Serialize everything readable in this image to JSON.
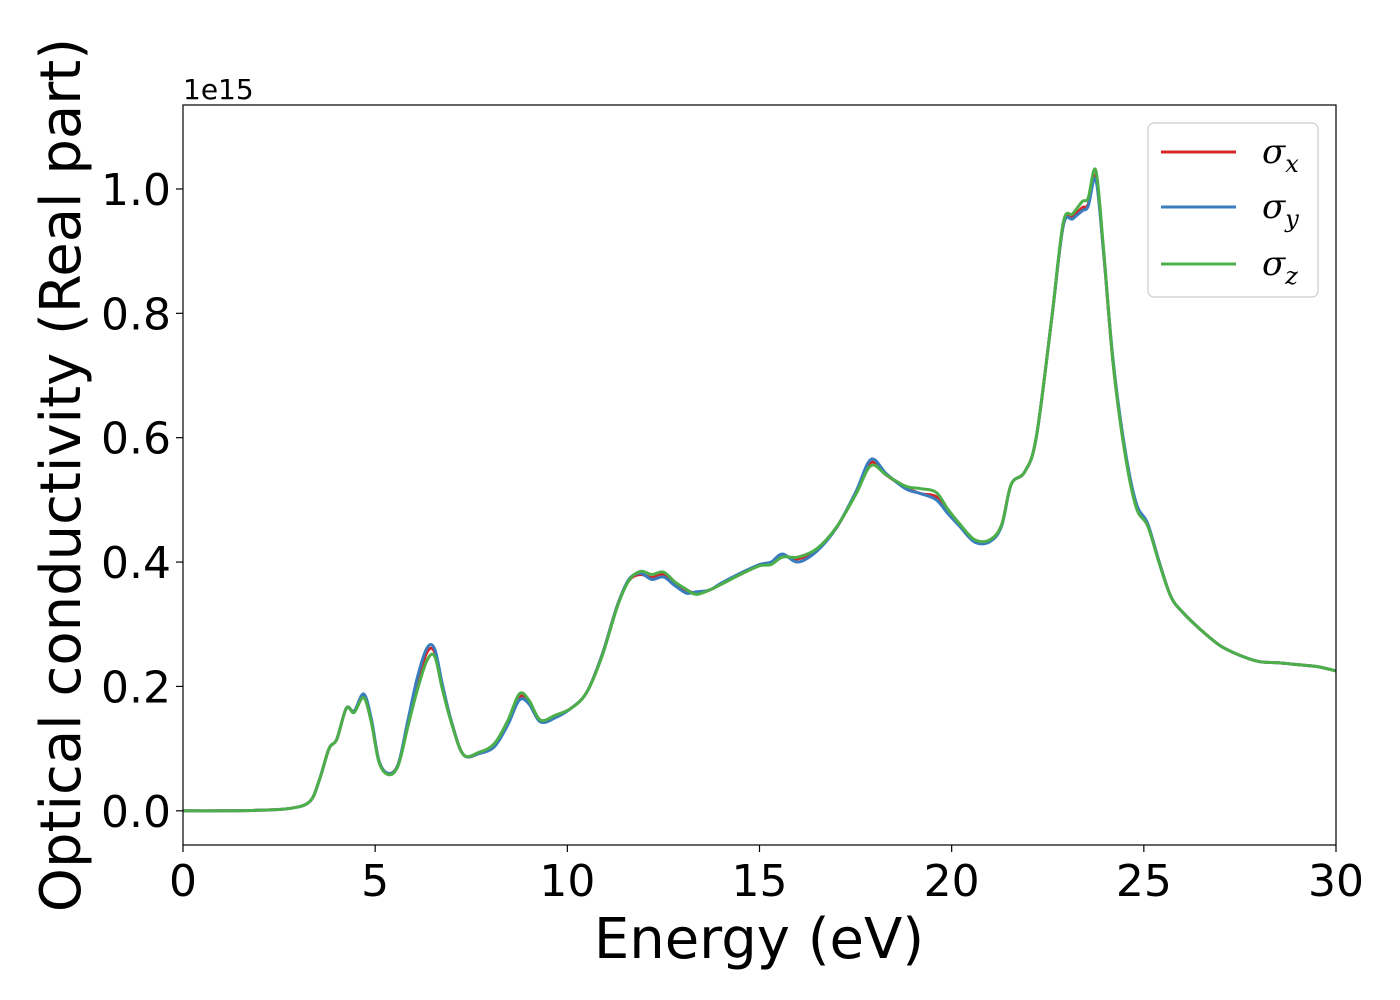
{
  "chart_data": {
    "type": "line",
    "title": "",
    "xlabel": "Energy (eV)",
    "ylabel": "Optical conductivity (Real part)",
    "y_offset_label": "1e15",
    "xlim": [
      0,
      30
    ],
    "ylim": [
      -0.055,
      1.135
    ],
    "xticks": [
      0,
      5,
      10,
      15,
      20,
      25,
      30
    ],
    "xtick_labels": [
      "0",
      "5",
      "10",
      "15",
      "20",
      "25",
      "30"
    ],
    "yticks": [
      0.0,
      0.2,
      0.4,
      0.6,
      0.8,
      1.0
    ],
    "ytick_labels": [
      "0.0",
      "0.2",
      "0.4",
      "0.6",
      "0.8",
      "1.0"
    ],
    "grid": false,
    "legend_position": "top-right",
    "x": [
      0,
      1,
      2,
      2.8,
      3.3,
      3.55,
      3.8,
      4.0,
      4.25,
      4.45,
      4.7,
      4.9,
      5.1,
      5.35,
      5.6,
      5.85,
      6.1,
      6.35,
      6.55,
      6.75,
      7.0,
      7.3,
      7.7,
      8.1,
      8.45,
      8.75,
      9.0,
      9.3,
      9.7,
      10.1,
      10.5,
      10.9,
      11.3,
      11.6,
      11.9,
      12.2,
      12.5,
      12.8,
      13.1,
      13.35,
      13.7,
      14.0,
      14.5,
      15.0,
      15.3,
      15.6,
      16.0,
      16.5,
      17.0,
      17.5,
      17.9,
      18.3,
      18.8,
      19.2,
      19.6,
      19.9,
      20.2,
      20.6,
      21.0,
      21.3,
      21.55,
      21.9,
      22.2,
      22.6,
      22.9,
      23.15,
      23.4,
      23.55,
      23.75,
      23.95,
      24.2,
      24.5,
      24.8,
      25.1,
      25.4,
      25.7,
      26.0,
      26.5,
      27.0,
      27.5,
      28.0,
      28.5,
      29.0,
      29.5,
      30.0
    ],
    "series": [
      {
        "name": "σx",
        "label_base": "σ",
        "label_sub": "x",
        "color": "#d62728",
        "values": [
          0,
          0,
          0.001,
          0.004,
          0.015,
          0.05,
          0.1,
          0.115,
          0.165,
          0.16,
          0.185,
          0.145,
          0.08,
          0.06,
          0.075,
          0.14,
          0.205,
          0.255,
          0.255,
          0.2,
          0.14,
          0.09,
          0.092,
          0.105,
          0.14,
          0.183,
          0.175,
          0.145,
          0.152,
          0.165,
          0.19,
          0.25,
          0.33,
          0.37,
          0.38,
          0.375,
          0.38,
          0.365,
          0.355,
          0.35,
          0.355,
          0.365,
          0.38,
          0.395,
          0.398,
          0.41,
          0.405,
          0.42,
          0.455,
          0.51,
          0.56,
          0.54,
          0.52,
          0.51,
          0.505,
          0.48,
          0.46,
          0.435,
          0.435,
          0.46,
          0.525,
          0.545,
          0.6,
          0.79,
          0.94,
          0.955,
          0.97,
          0.975,
          1.02,
          0.9,
          0.72,
          0.58,
          0.49,
          0.46,
          0.4,
          0.345,
          0.32,
          0.29,
          0.265,
          0.25,
          0.24,
          0.238,
          0.235,
          0.232,
          0.225
        ]
      },
      {
        "name": "σy",
        "label_base": "σ",
        "label_sub": "y",
        "color": "#3a7dbf",
        "values": [
          0,
          0,
          0.001,
          0.004,
          0.015,
          0.05,
          0.1,
          0.115,
          0.165,
          0.16,
          0.188,
          0.148,
          0.08,
          0.06,
          0.075,
          0.145,
          0.215,
          0.262,
          0.26,
          0.203,
          0.14,
          0.09,
          0.092,
          0.103,
          0.138,
          0.178,
          0.172,
          0.143,
          0.15,
          0.165,
          0.19,
          0.25,
          0.33,
          0.372,
          0.382,
          0.372,
          0.376,
          0.362,
          0.35,
          0.352,
          0.355,
          0.366,
          0.382,
          0.396,
          0.4,
          0.413,
          0.4,
          0.418,
          0.455,
          0.512,
          0.565,
          0.542,
          0.518,
          0.51,
          0.5,
          0.478,
          0.458,
          0.432,
          0.433,
          0.458,
          0.525,
          0.545,
          0.6,
          0.79,
          0.94,
          0.952,
          0.965,
          0.972,
          1.015,
          0.9,
          0.725,
          0.585,
          0.495,
          0.462,
          0.4,
          0.345,
          0.32,
          0.29,
          0.265,
          0.25,
          0.24,
          0.238,
          0.235,
          0.232,
          0.225
        ]
      },
      {
        "name": "σz",
        "label_base": "σ",
        "label_sub": "z",
        "color": "#4daf4a",
        "values": [
          0,
          0,
          0.001,
          0.004,
          0.015,
          0.05,
          0.1,
          0.115,
          0.165,
          0.158,
          0.182,
          0.142,
          0.078,
          0.058,
          0.073,
          0.135,
          0.195,
          0.242,
          0.248,
          0.195,
          0.138,
          0.09,
          0.094,
          0.108,
          0.145,
          0.188,
          0.178,
          0.146,
          0.154,
          0.165,
          0.19,
          0.248,
          0.328,
          0.37,
          0.385,
          0.38,
          0.384,
          0.368,
          0.356,
          0.348,
          0.355,
          0.364,
          0.38,
          0.394,
          0.396,
          0.408,
          0.408,
          0.422,
          0.456,
          0.508,
          0.555,
          0.54,
          0.522,
          0.518,
          0.512,
          0.485,
          0.462,
          0.436,
          0.436,
          0.46,
          0.525,
          0.545,
          0.6,
          0.79,
          0.945,
          0.96,
          0.98,
          0.985,
          1.03,
          0.905,
          0.72,
          0.578,
          0.488,
          0.458,
          0.398,
          0.345,
          0.32,
          0.29,
          0.265,
          0.25,
          0.24,
          0.238,
          0.235,
          0.232,
          0.225
        ]
      }
    ]
  }
}
